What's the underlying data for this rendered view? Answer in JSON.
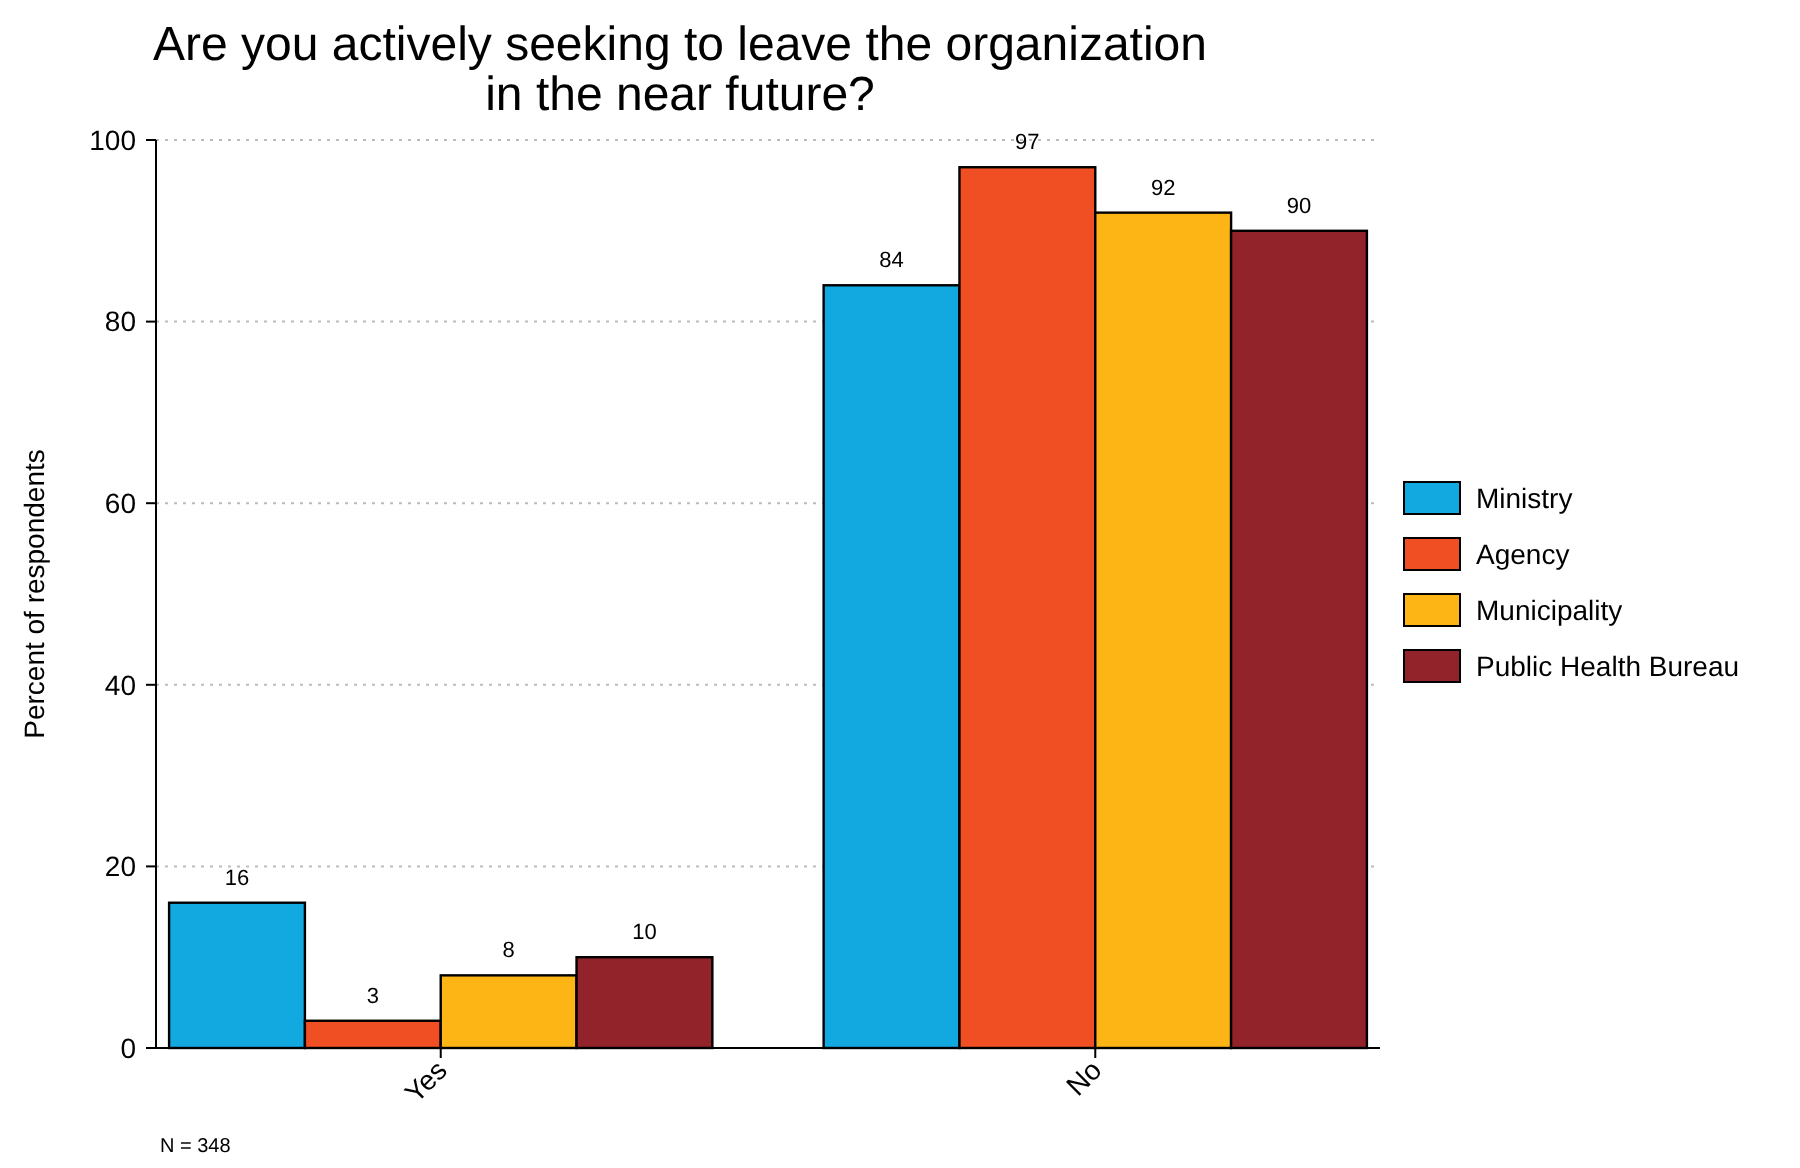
{
  "chart_data": {
    "type": "bar",
    "title": "Are you actively seeking to leave the organization in the near future?",
    "ylabel": "Percent of respondents",
    "categories": [
      "Yes",
      "No"
    ],
    "series": [
      {
        "name": "Ministry",
        "color": "#12a9e1",
        "values": [
          16,
          84
        ]
      },
      {
        "name": "Agency",
        "color": "#f04e23",
        "values": [
          3,
          97
        ]
      },
      {
        "name": "Municipality",
        "color": "#fdb515",
        "values": [
          8,
          92
        ]
      },
      {
        "name": "Public Health Bureau",
        "color": "#93232b",
        "values": [
          10,
          90
        ]
      }
    ],
    "ylim": [
      0,
      100
    ],
    "yticks": [
      0,
      20,
      40,
      60,
      80,
      100
    ],
    "grid": "y",
    "legend": "right",
    "data_labels": true,
    "annotations": [
      "N = 348"
    ]
  }
}
